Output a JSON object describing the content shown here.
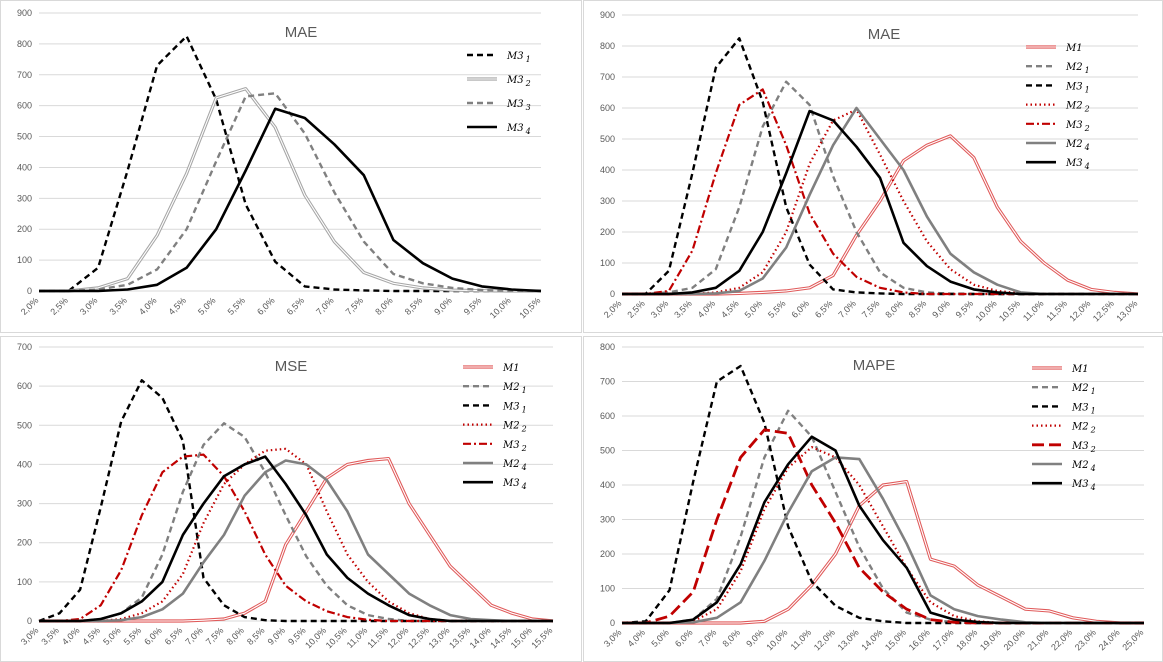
{
  "chart_data": [
    {
      "type": "line",
      "title": "MAE",
      "ylim": [
        0,
        900
      ],
      "yticks": [
        0,
        100,
        200,
        300,
        400,
        500,
        600,
        700,
        800,
        900
      ],
      "categories": [
        "2,0%",
        "2,5%",
        "3,0%",
        "3,5%",
        "4,0%",
        "4,5%",
        "5,0%",
        "5,5%",
        "6,0%",
        "6,5%",
        "7,0%",
        "7,5%",
        "8,0%",
        "8,5%",
        "9,0%",
        "9,5%",
        "10,0%",
        "10,5%"
      ],
      "legend_position": "right",
      "series": [
        {
          "name": "M3 1",
          "color": "#000000",
          "style": "dashed",
          "values": [
            0,
            0,
            75,
            390,
            730,
            825,
            620,
            280,
            95,
            15,
            5,
            2,
            0,
            0,
            0,
            0,
            0,
            0
          ]
        },
        {
          "name": "M3 2",
          "color": "#a6a6a6",
          "style": "double",
          "values": [
            0,
            0,
            10,
            40,
            180,
            380,
            625,
            655,
            530,
            310,
            160,
            60,
            25,
            10,
            3,
            1,
            0,
            0
          ]
        },
        {
          "name": "M3 3",
          "color": "#808080",
          "style": "dashed",
          "values": [
            0,
            0,
            5,
            20,
            70,
            200,
            420,
            630,
            640,
            510,
            320,
            160,
            55,
            25,
            10,
            3,
            1,
            0
          ]
        },
        {
          "name": "M3 4",
          "color": "#000000",
          "style": "solid",
          "values": [
            0,
            0,
            0,
            5,
            20,
            75,
            200,
            390,
            590,
            560,
            475,
            375,
            165,
            90,
            40,
            15,
            5,
            0
          ]
        }
      ]
    },
    {
      "type": "line",
      "title": "MAE",
      "ylim": [
        0,
        900
      ],
      "yticks": [
        0,
        100,
        200,
        300,
        400,
        500,
        600,
        700,
        800,
        900
      ],
      "categories": [
        "2,0%",
        "2,5%",
        "3,0%",
        "3,5%",
        "4,0%",
        "4,5%",
        "5,0%",
        "5,5%",
        "6,0%",
        "6,5%",
        "7,0%",
        "7,5%",
        "8,0%",
        "8,5%",
        "9,0%",
        "9,5%",
        "10,0%",
        "10,5%",
        "11,0%",
        "11,5%",
        "12,0%",
        "12,5%",
        "13,0%"
      ],
      "legend_position": "right",
      "series": [
        {
          "name": "M1",
          "color": "#e05a5a",
          "style": "double",
          "values": [
            0,
            0,
            0,
            0,
            0,
            2,
            5,
            10,
            20,
            60,
            190,
            300,
            430,
            480,
            510,
            440,
            280,
            170,
            100,
            45,
            15,
            5,
            0
          ]
        },
        {
          "name": "M2 1",
          "color": "#808080",
          "style": "dashed",
          "values": [
            0,
            0,
            5,
            20,
            80,
            280,
            540,
            685,
            610,
            380,
            200,
            70,
            20,
            5,
            1,
            0,
            0,
            0,
            0,
            0,
            0,
            0,
            0
          ]
        },
        {
          "name": "M3 1",
          "color": "#000000",
          "style": "dashed",
          "values": [
            0,
            0,
            75,
            390,
            730,
            825,
            620,
            280,
            95,
            15,
            5,
            2,
            0,
            0,
            0,
            0,
            0,
            0,
            0,
            0,
            0,
            0,
            0
          ]
        },
        {
          "name": "M2 2",
          "color": "#c00000",
          "style": "dotted",
          "values": [
            0,
            0,
            0,
            0,
            5,
            20,
            70,
            200,
            420,
            560,
            595,
            450,
            300,
            170,
            80,
            30,
            10,
            2,
            0,
            0,
            0,
            0,
            0
          ]
        },
        {
          "name": "M3 2",
          "color": "#c00000",
          "style": "dashdot",
          "values": [
            0,
            0,
            10,
            140,
            390,
            610,
            660,
            480,
            260,
            130,
            55,
            20,
            5,
            0,
            0,
            0,
            0,
            0,
            0,
            0,
            0,
            0,
            0
          ]
        },
        {
          "name": "M2 4",
          "color": "#808080",
          "style": "solid",
          "values": [
            0,
            0,
            0,
            0,
            2,
            10,
            50,
            150,
            320,
            480,
            600,
            500,
            400,
            250,
            130,
            70,
            30,
            5,
            0,
            0,
            0,
            0,
            0
          ]
        },
        {
          "name": "M3 4",
          "color": "#000000",
          "style": "solid",
          "values": [
            0,
            0,
            0,
            5,
            20,
            75,
            200,
            390,
            590,
            560,
            475,
            375,
            165,
            90,
            40,
            15,
            5,
            0,
            0,
            0,
            0,
            0,
            0
          ]
        }
      ]
    },
    {
      "type": "line",
      "title": "MSE",
      "ylim": [
        0,
        700
      ],
      "yticks": [
        0,
        100,
        200,
        300,
        400,
        500,
        600,
        700
      ],
      "categories": [
        "3,0%",
        "3,5%",
        "4,0%",
        "4,5%",
        "5,0%",
        "5,5%",
        "6,0%",
        "6,5%",
        "7,0%",
        "7,5%",
        "8,0%",
        "8,5%",
        "9,0%",
        "9,5%",
        "10,0%",
        "10,5%",
        "11,0%",
        "11,5%",
        "12,0%",
        "12,5%",
        "13,0%",
        "13,5%",
        "14,0%",
        "14,5%",
        "15,0%",
        "15,5%"
      ],
      "legend_position": "right",
      "series": [
        {
          "name": "M1",
          "color": "#e05a5a",
          "style": "double",
          "values": [
            0,
            0,
            0,
            0,
            0,
            0,
            0,
            0,
            2,
            5,
            20,
            50,
            195,
            280,
            365,
            400,
            410,
            415,
            300,
            220,
            140,
            90,
            40,
            20,
            5,
            0
          ]
        },
        {
          "name": "M2 1",
          "color": "#808080",
          "style": "dashed",
          "values": [
            0,
            0,
            0,
            5,
            20,
            60,
            170,
            330,
            450,
            505,
            470,
            380,
            270,
            165,
            90,
            40,
            15,
            5,
            0,
            0,
            0,
            0,
            0,
            0,
            0,
            0
          ]
        },
        {
          "name": "M3 1",
          "color": "#000000",
          "style": "dashed",
          "values": [
            0,
            20,
            80,
            290,
            510,
            615,
            570,
            460,
            110,
            40,
            10,
            2,
            0,
            0,
            0,
            0,
            0,
            0,
            0,
            0,
            0,
            0,
            0,
            0,
            0,
            0
          ]
        },
        {
          "name": "M2 2",
          "color": "#c00000",
          "style": "dotted",
          "values": [
            0,
            0,
            0,
            0,
            5,
            20,
            50,
            120,
            250,
            350,
            400,
            435,
            440,
            400,
            280,
            170,
            100,
            50,
            20,
            5,
            0,
            0,
            0,
            0,
            0,
            0
          ]
        },
        {
          "name": "M3 2",
          "color": "#c00000",
          "style": "dashdot",
          "values": [
            0,
            0,
            5,
            40,
            130,
            270,
            380,
            420,
            425,
            370,
            280,
            170,
            90,
            50,
            25,
            10,
            3,
            0,
            0,
            0,
            0,
            0,
            0,
            0,
            0,
            0
          ]
        },
        {
          "name": "M2 4",
          "color": "#808080",
          "style": "solid",
          "values": [
            0,
            0,
            0,
            0,
            2,
            10,
            30,
            70,
            150,
            220,
            320,
            380,
            410,
            400,
            360,
            280,
            170,
            120,
            70,
            40,
            15,
            5,
            2,
            0,
            0,
            0
          ]
        },
        {
          "name": "M3 4",
          "color": "#000000",
          "style": "solid",
          "values": [
            0,
            0,
            0,
            5,
            20,
            50,
            100,
            220,
            300,
            370,
            400,
            420,
            350,
            270,
            170,
            110,
            70,
            40,
            15,
            5,
            0,
            0,
            0,
            0,
            0,
            0
          ]
        }
      ]
    },
    {
      "type": "line",
      "title": "MAPE",
      "ylim": [
        0,
        800
      ],
      "yticks": [
        0,
        100,
        200,
        300,
        400,
        500,
        600,
        700,
        800
      ],
      "categories": [
        "3,0%",
        "4,0%",
        "5,0%",
        "6,0%",
        "7,0%",
        "8,0%",
        "9,0%",
        "10,0%",
        "11,0%",
        "12,0%",
        "13,0%",
        "14,0%",
        "15,0%",
        "16,0%",
        "17,0%",
        "18,0%",
        "19,0%",
        "20,0%",
        "21,0%",
        "22,0%",
        "23,0%",
        "24,0%",
        "25,0%"
      ],
      "legend_position": "right",
      "series": [
        {
          "name": "M1",
          "color": "#e05a5a",
          "style": "double",
          "values": [
            0,
            0,
            0,
            0,
            0,
            0,
            5,
            40,
            110,
            200,
            340,
            400,
            410,
            185,
            165,
            110,
            75,
            40,
            35,
            15,
            5,
            0,
            0
          ]
        },
        {
          "name": "M2 1",
          "color": "#808080",
          "style": "dashed",
          "values": [
            0,
            0,
            0,
            10,
            70,
            250,
            480,
            615,
            540,
            380,
            220,
            100,
            30,
            10,
            2,
            0,
            0,
            0,
            0,
            0,
            0,
            0,
            0
          ]
        },
        {
          "name": "M3 1",
          "color": "#000000",
          "style": "dashed",
          "values": [
            0,
            5,
            95,
            410,
            700,
            745,
            580,
            280,
            120,
            50,
            15,
            5,
            0,
            0,
            0,
            0,
            0,
            0,
            0,
            0,
            0,
            0,
            0
          ]
        },
        {
          "name": "M2 2",
          "color": "#c00000",
          "style": "dotted",
          "values": [
            0,
            0,
            0,
            5,
            40,
            150,
            330,
            450,
            510,
            480,
            400,
            280,
            160,
            60,
            20,
            5,
            0,
            0,
            0,
            0,
            0,
            0,
            0
          ]
        },
        {
          "name": "M3 2",
          "color": "#c00000",
          "style": "longdash",
          "values": [
            0,
            0,
            20,
            90,
            300,
            480,
            560,
            550,
            400,
            290,
            160,
            90,
            40,
            10,
            2,
            0,
            0,
            0,
            0,
            0,
            0,
            0,
            0
          ]
        },
        {
          "name": "M2 4",
          "color": "#808080",
          "style": "solid",
          "values": [
            0,
            0,
            0,
            2,
            15,
            60,
            180,
            320,
            440,
            480,
            475,
            360,
            230,
            80,
            40,
            20,
            10,
            2,
            0,
            0,
            0,
            0,
            0
          ]
        },
        {
          "name": "M3 4",
          "color": "#000000",
          "style": "solid",
          "values": [
            0,
            0,
            0,
            10,
            60,
            170,
            350,
            460,
            540,
            500,
            340,
            240,
            160,
            30,
            10,
            3,
            0,
            0,
            0,
            0,
            0,
            0,
            0
          ]
        }
      ]
    }
  ]
}
